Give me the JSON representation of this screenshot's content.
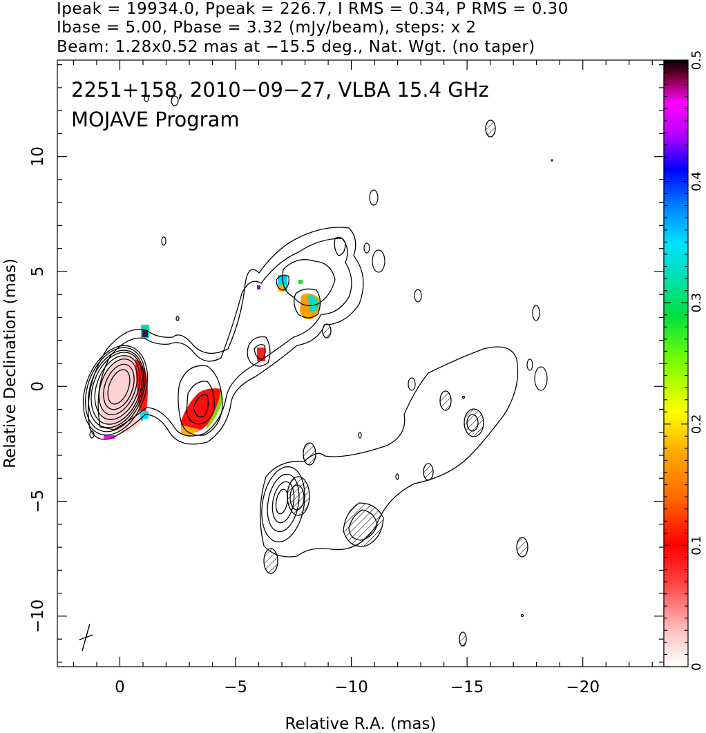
{
  "header": {
    "line1": "Ipeak = 19934.0, Ppeak = 226.7, I RMS = 0.34, P RMS = 0.30",
    "line2": "Ibase = 5.00, Pbase = 3.32 (mJy/beam), steps: x 2",
    "line3": "Beam: 1.28x0.52 mas at −15.5 deg., Nat. Wgt. (no taper)"
  },
  "chart_data": {
    "type": "heatmap",
    "source_label": "2251+158, 2010−09−27, VLBA 15.4 GHz",
    "program_label": "MOJAVE Program",
    "xlabel": "Relative R.A. (mas)",
    "ylabel": "Relative Declination (mas)",
    "xlim": [
      2.7,
      -23.5
    ],
    "ylim": [
      -12.2,
      14.2
    ],
    "x_axis_reversed": true,
    "x_ticks": [
      0,
      -5,
      -10,
      -15,
      -20
    ],
    "x_tick_labels": [
      "0",
      "−5",
      "−10",
      "−15",
      "−20"
    ],
    "y_ticks": [
      -10,
      -5,
      0,
      5,
      10
    ],
    "y_tick_labels": [
      "−10",
      "−5",
      "0",
      "5",
      "10"
    ],
    "colorbar": {
      "range": [
        0,
        0.5
      ],
      "ticks": [
        0,
        0.1,
        0.2,
        0.3,
        0.4,
        0.5
      ],
      "tick_labels": [
        "0",
        "0.1",
        "0.2",
        "0.3",
        "0.4",
        "0.5"
      ],
      "orientation": "vertical",
      "position": "right"
    },
    "intensity_contours": {
      "core": [
        0,
        0
      ],
      "base_mJy_per_beam": 5.0,
      "step_factor": 2,
      "peak_mJy_per_beam": 19934.0
    },
    "polarization_patches": [
      {
        "ra": 0.3,
        "dec": -0.4,
        "value": 0.08
      },
      {
        "ra": -3.6,
        "dec": -1.1,
        "value": 0.12
      },
      {
        "ra": -6.2,
        "dec": 1.4,
        "value": 0.09
      },
      {
        "ra": -8.3,
        "dec": 3.6,
        "value": 0.2
      },
      {
        "ra": -7.1,
        "dec": 4.3,
        "value": 0.3
      },
      {
        "ra": -1.2,
        "dec": 2.4,
        "value": 0.3
      },
      {
        "ra": -1.2,
        "dec": -1.2,
        "value": 0.3
      }
    ],
    "beam": {
      "major_mas": 1.28,
      "minor_mas": 0.52,
      "pa_deg": -15.5,
      "position": "bottom-left"
    },
    "grid": false
  }
}
